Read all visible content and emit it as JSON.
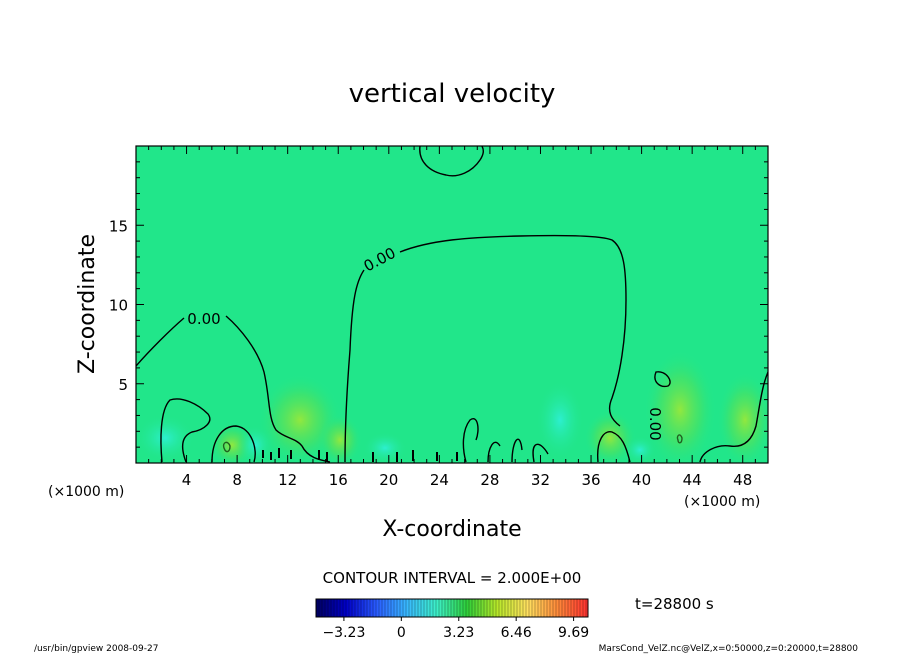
{
  "chart_data": {
    "type": "heatmap",
    "title": "vertical velocity",
    "xlabel": "X-coordinate",
    "ylabel": "Z-coordinate",
    "x_unit": "(×1000 m)",
    "y_unit": "(×1000 m)",
    "xlim": [
      0,
      50
    ],
    "ylim": [
      0,
      20
    ],
    "xticks": [
      4,
      8,
      12,
      16,
      20,
      24,
      28,
      32,
      36,
      40,
      44,
      48
    ],
    "yticks": [
      5,
      10,
      15
    ],
    "xtick_labels": [
      "4",
      "8",
      "12",
      "16",
      "20",
      "24",
      "28",
      "32",
      "36",
      "40",
      "44",
      "48"
    ],
    "ytick_labels": [
      "5",
      "10",
      "15"
    ],
    "contour_interval_text": "CONTOUR INTERVAL = 2.000E+00",
    "time_text": "t=28800 s",
    "contour_labels": [
      "0.00",
      "0.00",
      "0.00"
    ],
    "colorbar": {
      "ticks": [
        -3.23,
        0,
        3.23,
        6.46,
        9.69
      ],
      "tick_labels": [
        "−3.23",
        "0",
        "3.23",
        "6.46",
        "9.69"
      ],
      "range": [
        -4.8,
        10.5
      ],
      "colors": [
        "#000060",
        "#0000c8",
        "#2a5cff",
        "#39b8ff",
        "#3df0c8",
        "#2fcf3a",
        "#b8e82a",
        "#ffe060",
        "#ff8a3a",
        "#ff3030"
      ]
    },
    "background_value_color": "#21e68a",
    "footer_left": "/usr/bin/gpview  2008-09-27",
    "footer_right": "MarsCond_VelZ.nc@VelZ,x=0:50000,z=0:20000,t=28800"
  }
}
